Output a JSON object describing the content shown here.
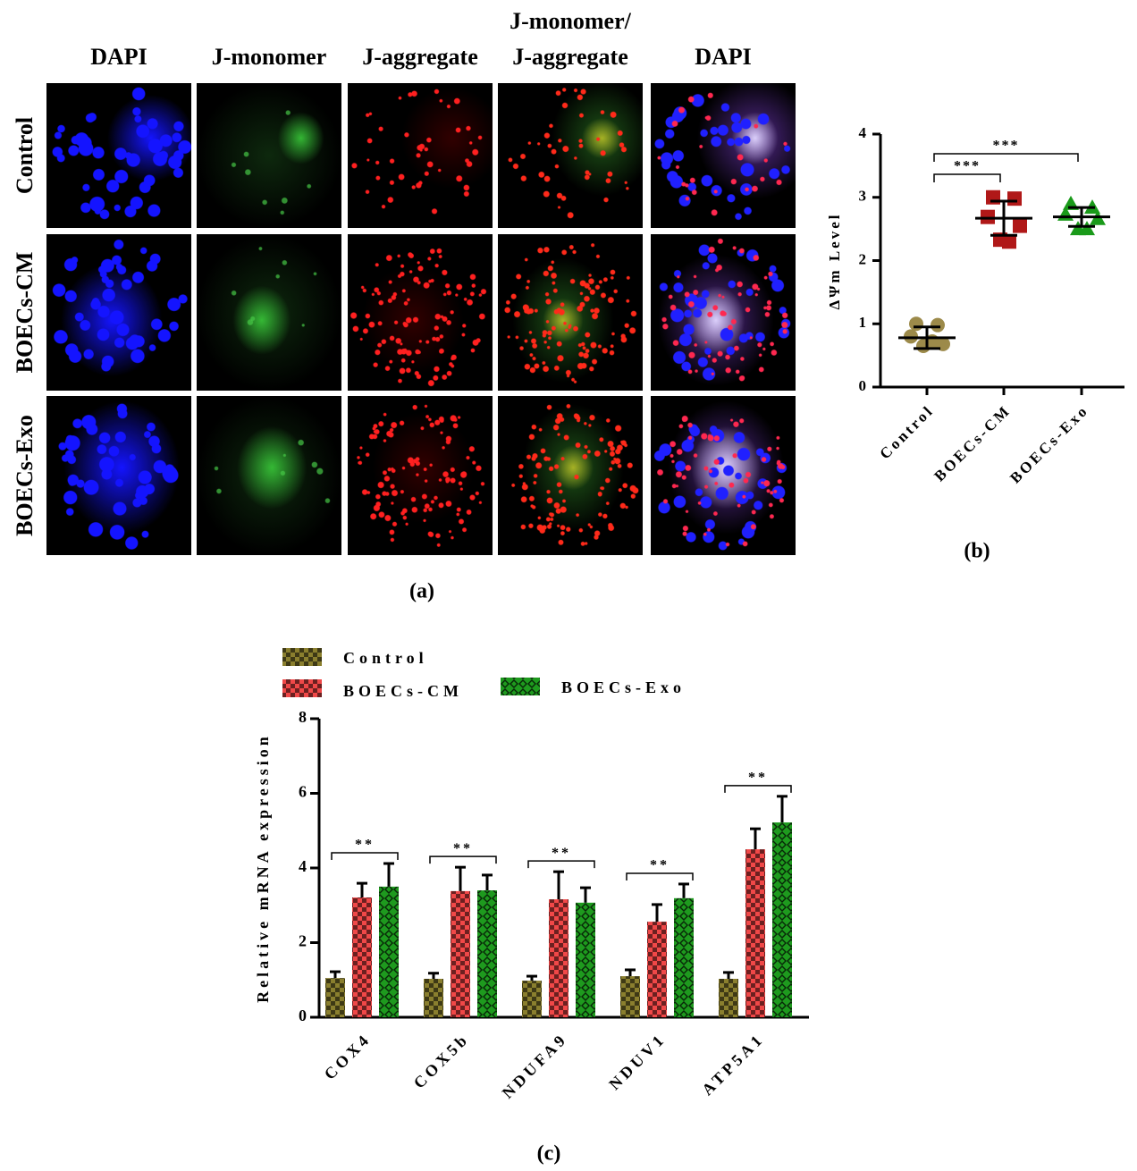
{
  "panel_a": {
    "columns": [
      "DAPI",
      "J-monomer",
      "J-aggregate",
      "J-monomer/\nJ-aggregate",
      "DAPI"
    ],
    "rows": [
      "Control",
      "BOECs-CM",
      "BOECs-Exo"
    ],
    "caption": "(a)"
  },
  "chart_data": [
    {
      "type": "dot",
      "ylabel": "ΔΨm Level",
      "caption": "(b)",
      "categories": [
        "Control",
        "BOECs-CM",
        "BOECs-Exo"
      ],
      "points": [
        [
          1.0,
          0.98,
          0.8,
          0.68,
          0.65,
          0.72
        ],
        [
          3.0,
          2.98,
          2.69,
          2.55,
          2.33,
          2.3
        ],
        [
          2.9,
          2.84,
          2.73,
          2.66,
          2.5,
          2.5
        ]
      ],
      "means": [
        0.78,
        2.67,
        2.69
      ],
      "errors": [
        0.17,
        0.27,
        0.15
      ],
      "colors": [
        "#9c8a4a",
        "#b01818",
        "#1a9a1a"
      ],
      "markers": [
        "circle",
        "square",
        "triangle"
      ],
      "ylim": [
        0,
        4
      ],
      "yticks": [
        0,
        1,
        2,
        3,
        4
      ],
      "annotations": [
        {
          "from": 0,
          "to": 1,
          "label": "***"
        },
        {
          "from": 0,
          "to": 2,
          "label": "***"
        }
      ]
    },
    {
      "type": "bar",
      "ylabel": "Relative mRNA expression",
      "caption": "(c)",
      "categories": [
        "COX4",
        "COX5b",
        "NDUFA9",
        "NDUV1",
        "ATP5A1"
      ],
      "series": [
        {
          "name": "Control",
          "color": "#8a7f2e",
          "pattern": "checker",
          "values": [
            1.05,
            1.03,
            0.98,
            1.1,
            1.03
          ],
          "errors": [
            0.17,
            0.15,
            0.12,
            0.17,
            0.17
          ]
        },
        {
          "name": "BOECs-CM",
          "color": "#f04848",
          "pattern": "checker",
          "values": [
            3.21,
            3.38,
            3.16,
            2.56,
            4.5
          ],
          "errors": [
            0.38,
            0.64,
            0.74,
            0.46,
            0.55
          ]
        },
        {
          "name": "BOECs-Exo",
          "color": "#1e9a1e",
          "pattern": "diamond",
          "values": [
            3.5,
            3.4,
            3.07,
            3.19,
            5.22
          ],
          "errors": [
            0.62,
            0.41,
            0.4,
            0.38,
            0.7
          ]
        }
      ],
      "ylim": [
        0,
        8
      ],
      "yticks": [
        0,
        2,
        4,
        6,
        8
      ],
      "annotations": [
        {
          "category": 0,
          "label": "**"
        },
        {
          "category": 1,
          "label": "**"
        },
        {
          "category": 2,
          "label": "**"
        },
        {
          "category": 3,
          "label": "**"
        },
        {
          "category": 4,
          "label": "**"
        }
      ]
    }
  ]
}
